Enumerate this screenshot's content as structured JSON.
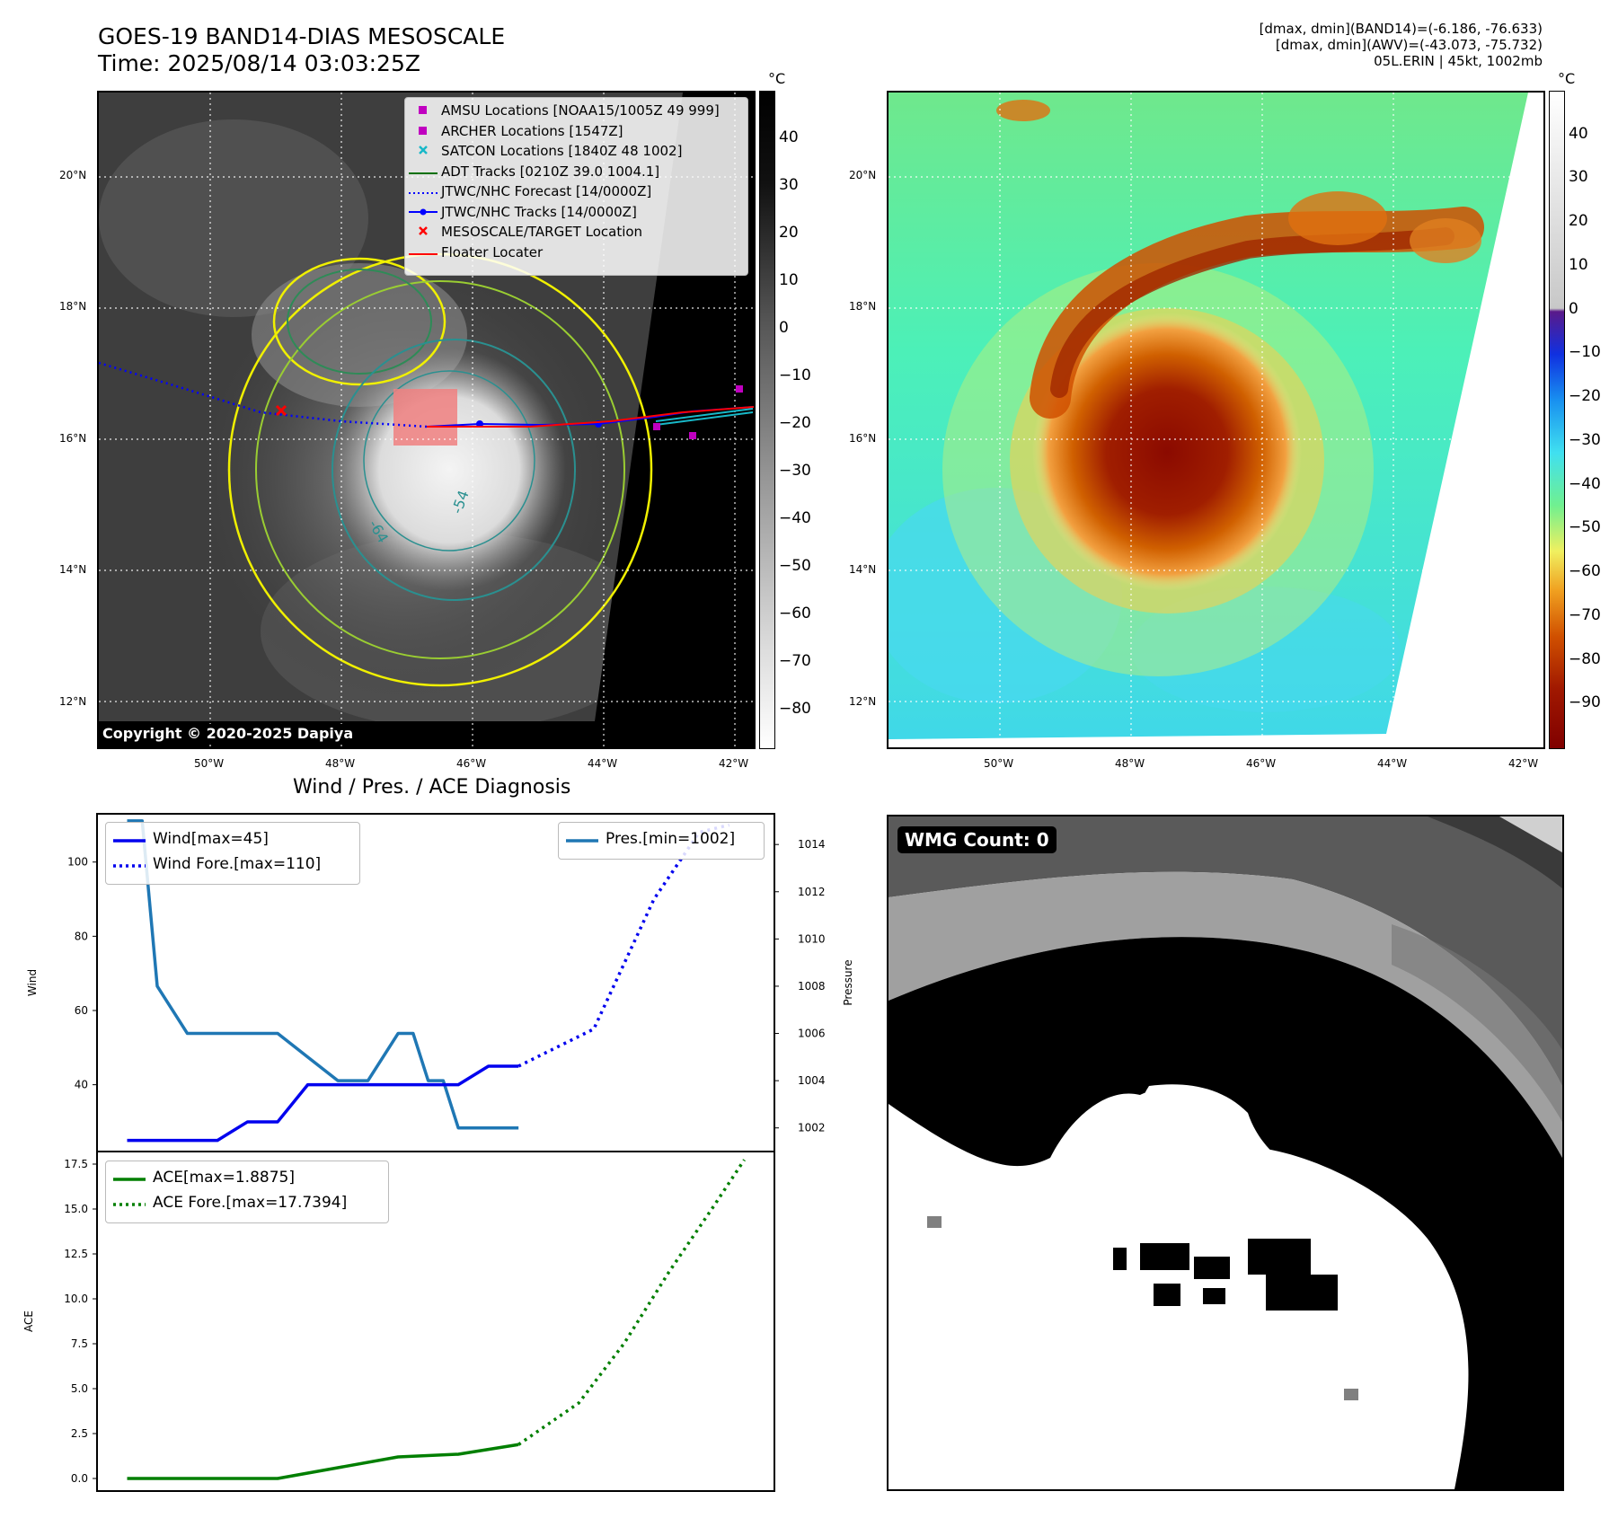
{
  "header": {
    "title_line1": "GOES-19 BAND14-DIAS MESOSCALE",
    "title_line2": "Time: 2025/08/14 03:03:25Z",
    "info_line1": "[dmax, dmin](BAND14)=(-6.186, -76.633)",
    "info_line2": "[dmax, dmin](AWV)=(-43.073, -75.732)",
    "info_line3": "05L.ERIN | 45kt, 1002mb"
  },
  "map": {
    "lat_labels": [
      "20°N",
      "18°N",
      "16°N",
      "14°N",
      "12°N"
    ],
    "lon_labels": [
      "50°W",
      "48°W",
      "46°W",
      "44°W",
      "42°W"
    ],
    "contour_labels": [
      "-64",
      "-54"
    ],
    "copyright": "Copyright © 2020-2025 Dapiya",
    "colorbar_unit": "°C",
    "left_colorbar_ticks": [
      "40",
      "30",
      "20",
      "10",
      "0",
      "−10",
      "−20",
      "−30",
      "−40",
      "−50",
      "−60",
      "−70",
      "−80"
    ],
    "right_colorbar_ticks": [
      "40",
      "30",
      "20",
      "10",
      "0",
      "−10",
      "−20",
      "−30",
      "−40",
      "−50",
      "−60",
      "−70",
      "−80",
      "−90"
    ],
    "legend": [
      {
        "label": "AMSU Locations [NOAA15/1005Z 49 999]",
        "symbol": "square-marker",
        "color": "#c000c0"
      },
      {
        "label": "ARCHER Locations [1547Z]",
        "symbol": "square-marker",
        "color": "#c000c0"
      },
      {
        "label": "SATCON Locations [1840Z 48 1002]",
        "symbol": "x-marker",
        "color": "#18b8c8"
      },
      {
        "label": "ADT Tracks [0210Z 39.0 1004.1]",
        "symbol": "solid-line",
        "color": "#007000"
      },
      {
        "label": "JTWC/NHC Forecast [14/0000Z]",
        "symbol": "dotted-line",
        "color": "#0000ff"
      },
      {
        "label": "JTWC/NHC Tracks [14/0000Z]",
        "symbol": "line-dot",
        "color": "#0000ff"
      },
      {
        "label": "MESOSCALE/TARGET Location",
        "symbol": "x-marker",
        "color": "#ff0000"
      },
      {
        "label": "Floater Locater",
        "symbol": "solid-line",
        "color": "#ff0000"
      }
    ]
  },
  "diagnosis": {
    "title": "Wind / Pres. / ACE Diagnosis",
    "wind_ylabel": "Wind",
    "pressure_ylabel": "Pressure",
    "ace_ylabel": "ACE",
    "wind_legend": [
      "Wind[max=45]",
      "Wind Fore.[max=110]"
    ],
    "pressure_legend": "Pres.[min=1002]",
    "ace_legend": [
      "ACE[max=1.8875]",
      "ACE Fore.[max=17.7394]"
    ]
  },
  "wmg": {
    "label": "WMG Count: 0"
  },
  "chart_data": [
    {
      "type": "line",
      "title": "Wind / Pres. / ACE Diagnosis",
      "ylabel": "Wind",
      "ylim": [
        22,
        113
      ],
      "yticks": [
        40,
        60,
        80,
        100
      ],
      "xlim": [
        0,
        22.5
      ],
      "series": [
        {
          "name": "Wind[max=45]",
          "style": "solid",
          "color": "#0000ee",
          "x": [
            1,
            2,
            3,
            4,
            5,
            6,
            7,
            8,
            9,
            10,
            11,
            12,
            13,
            14
          ],
          "values": [
            25,
            25,
            25,
            25,
            30,
            30,
            40,
            40,
            40,
            40,
            40,
            40,
            45,
            45
          ]
        },
        {
          "name": "Wind Fore.[max=110]",
          "style": "dotted",
          "color": "#0000ee",
          "x": [
            14,
            16.5,
            18.5,
            20,
            21
          ],
          "values": [
            45,
            55,
            90,
            108,
            110
          ]
        }
      ]
    },
    {
      "type": "line",
      "ylabel": "Pressure",
      "ylim": [
        1001,
        1015.3
      ],
      "yticks": [
        1002,
        1004,
        1006,
        1008,
        1010,
        1012,
        1014
      ],
      "xlim": [
        0,
        22.5
      ],
      "series": [
        {
          "name": "Pres.[min=1002]",
          "style": "solid",
          "color": "#1f77b4",
          "x": [
            1,
            1.5,
            2,
            3,
            4,
            5,
            6,
            7,
            8,
            9,
            9.5,
            10,
            10.5,
            11,
            11.5,
            12,
            13,
            14
          ],
          "values": [
            1015,
            1015,
            1008,
            1006,
            1006,
            1006,
            1006,
            1005,
            1004,
            1004,
            1005,
            1006,
            1006,
            1004,
            1004,
            1002,
            1002,
            1002
          ]
        }
      ]
    },
    {
      "type": "line",
      "ylabel": "ACE",
      "ylim": [
        -0.7,
        18.2
      ],
      "yticks": [
        0.0,
        2.5,
        5.0,
        7.5,
        10.0,
        12.5,
        15.0,
        17.5
      ],
      "ytick_labels": [
        "0.0",
        "2.5",
        "5.0",
        "7.5",
        "10.0",
        "12.5",
        "15.0",
        "17.5"
      ],
      "xlim": [
        0,
        22.5
      ],
      "series": [
        {
          "name": "ACE[max=1.8875]",
          "style": "solid",
          "color": "#007f00",
          "x": [
            1,
            2,
            4,
            6,
            8,
            10,
            12,
            14
          ],
          "values": [
            0,
            0,
            0,
            0,
            0.6,
            1.2,
            1.35,
            1.8875
          ]
        },
        {
          "name": "ACE Fore.[max=17.7394]",
          "style": "dotted",
          "color": "#007f00",
          "x": [
            14,
            16,
            17.5,
            19,
            20.5,
            21.5
          ],
          "values": [
            1.8875,
            4.2,
            7.5,
            11.5,
            15.2,
            17.7394
          ]
        }
      ]
    }
  ]
}
